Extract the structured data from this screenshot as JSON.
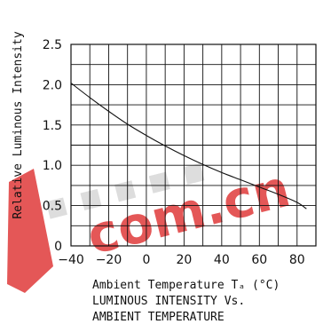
{
  "chart_data": {
    "type": "line",
    "title": "",
    "xlabel": "Ambient Temperature Tₐ (°C)",
    "ylabel": "Relative Luminous Intensity",
    "xlim": [
      -40,
      90
    ],
    "ylim": [
      0,
      2.5
    ],
    "x_ticks": [
      -40,
      -20,
      0,
      20,
      40,
      60,
      80
    ],
    "x_tick_labels": [
      "−40",
      "−20",
      "0",
      "20",
      "40",
      "60",
      "80"
    ],
    "y_ticks": [
      0,
      0.5,
      1.0,
      1.5,
      2.0,
      2.5
    ],
    "y_tick_labels": [
      "0",
      "0.5",
      "1.0",
      "1.5",
      "2.0",
      "2.5"
    ],
    "grid": true,
    "series": [
      {
        "x": [
          -40,
          -30,
          -20,
          -10,
          0,
          10,
          20,
          30,
          40,
          50,
          60,
          70,
          80,
          85
        ],
        "y": [
          2.02,
          1.84,
          1.67,
          1.51,
          1.37,
          1.24,
          1.12,
          1.01,
          0.91,
          0.82,
          0.73,
          0.64,
          0.54,
          0.46
        ],
        "color": "#111111"
      }
    ]
  },
  "captions": {
    "line1": "LUMINOUS INTENSITY Vs.",
    "line2": "AMBIENT TEMPERATURE"
  },
  "watermark": {
    "text": "com.cn",
    "color": "#e03a3a"
  }
}
